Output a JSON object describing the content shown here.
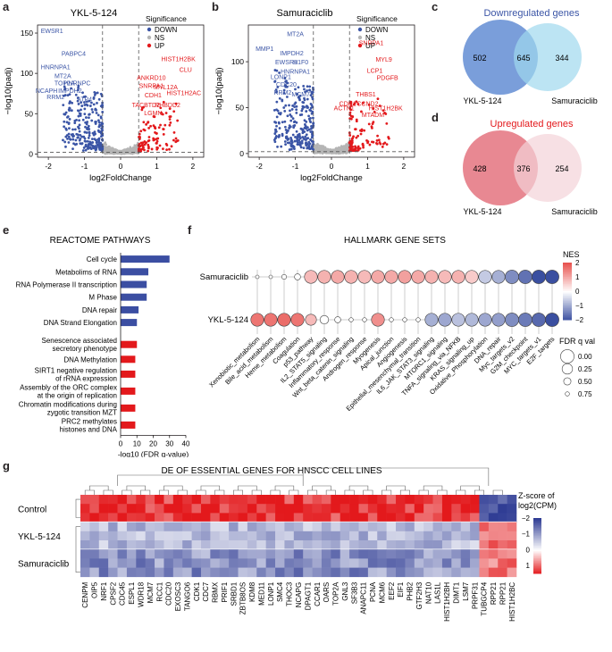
{
  "panel_letters": [
    "a",
    "b",
    "c",
    "d",
    "e",
    "f",
    "g"
  ],
  "volcano_legend": {
    "title": "Significance",
    "items": [
      "DOWN",
      "NS",
      "UP"
    ]
  },
  "colors": {
    "down": "#3b55a6",
    "ns": "#b5b5b5",
    "up": "#e3191c",
    "venn_down_left": "#6b93d6",
    "venn_down_right": "#9fd8ee",
    "venn_up_left": "#e67b86",
    "venn_up_right": "#f3d3d8",
    "venn_down_title": "#3b55a6",
    "venn_up_title": "#e3191c",
    "bar_blue": "#3b4ea2",
    "bar_red": "#e3191c"
  },
  "chart_data": [
    {
      "id": "a",
      "type": "scatter",
      "title": "YKL-5-124",
      "xlabel": "log2FoldChange",
      "ylabel": "−log10(padj)",
      "xlim": [
        -2.3,
        2.3
      ],
      "ylim": [
        -4,
        160
      ],
      "xticks": [
        "-2",
        "-1",
        "0",
        "1",
        "2"
      ],
      "yticks": [
        "0",
        "50",
        "100",
        "150"
      ],
      "xtick_values": [
        -2,
        -1,
        0,
        1,
        2
      ],
      "ytick_values": [
        0,
        50,
        100,
        150
      ],
      "vlines": [
        -0.5,
        0.5
      ],
      "hline": 2,
      "labels_down": [
        {
          "text": "EWSR1",
          "x": -1.9,
          "y": 150
        },
        {
          "text": "PABPC4",
          "x": -1.3,
          "y": 122
        },
        {
          "text": "HNRNPA1",
          "x": -1.8,
          "y": 105
        },
        {
          "text": "MT2A",
          "x": -1.6,
          "y": 94
        },
        {
          "text": "TOP2A",
          "x": -1.55,
          "y": 85
        },
        {
          "text": "HNRNPC",
          "x": -1.2,
          "y": 85
        },
        {
          "text": "NCAPH",
          "x": -2.05,
          "y": 76
        },
        {
          "text": "IMPDH2",
          "x": -1.4,
          "y": 76
        },
        {
          "text": "RRM2",
          "x": -1.8,
          "y": 68
        },
        {
          "text": "ATP4",
          "x": -1.0,
          "y": 65
        }
      ],
      "labels_up": [
        {
          "text": "HIST1H2BK",
          "x": 1.6,
          "y": 115
        },
        {
          "text": "CLU",
          "x": 1.8,
          "y": 102
        },
        {
          "text": "ANKRD10",
          "x": 0.85,
          "y": 92
        },
        {
          "text": "SNRPA1",
          "x": 0.85,
          "y": 82
        },
        {
          "text": "MYL12A",
          "x": 1.25,
          "y": 80
        },
        {
          "text": "HIST1H2AC",
          "x": 1.75,
          "y": 73
        },
        {
          "text": "CDH1",
          "x": 0.9,
          "y": 70
        },
        {
          "text": "TACBTD2",
          "x": 0.7,
          "y": 58
        },
        {
          "text": "RHBDD2",
          "x": 1.3,
          "y": 58
        },
        {
          "text": "LGMN",
          "x": 0.9,
          "y": 48
        }
      ]
    },
    {
      "id": "b",
      "type": "scatter",
      "title": "Samuraciclib",
      "xlabel": "log2FoldChange",
      "ylabel": "−log10(padj)",
      "xlim": [
        -2.3,
        2.3
      ],
      "ylim": [
        -4,
        140
      ],
      "xticks": [
        "-2",
        "-1",
        "0",
        "1",
        "2"
      ],
      "yticks": [
        "0",
        "50",
        "100"
      ],
      "xtick_values": [
        -2,
        -1,
        0,
        1,
        2
      ],
      "ytick_values": [
        0,
        50,
        100
      ],
      "vlines": [
        -0.5,
        0.5
      ],
      "hline": 2,
      "labels_down": [
        {
          "text": "MT2A",
          "x": -1.0,
          "y": 128
        },
        {
          "text": "MMP1",
          "x": -1.85,
          "y": 112
        },
        {
          "text": "IMPDH2",
          "x": -1.1,
          "y": 107
        },
        {
          "text": "EWSR1",
          "x": -1.25,
          "y": 97
        },
        {
          "text": "H1F0",
          "x": -0.85,
          "y": 97
        },
        {
          "text": "HNRNPA1",
          "x": -1.0,
          "y": 87
        },
        {
          "text": "LONP1",
          "x": -1.4,
          "y": 81
        },
        {
          "text": "CDC20",
          "x": -1.25,
          "y": 73
        },
        {
          "text": "RRM2",
          "x": -1.35,
          "y": 64
        },
        {
          "text": "MCM7",
          "x": -0.85,
          "y": 62
        }
      ],
      "labels_up": [
        {
          "text": "SNRPA1",
          "x": 1.1,
          "y": 118
        },
        {
          "text": "MYL9",
          "x": 1.45,
          "y": 100
        },
        {
          "text": "LCP1",
          "x": 1.2,
          "y": 88
        },
        {
          "text": "PDGFB",
          "x": 1.55,
          "y": 80
        },
        {
          "text": "THBS1",
          "x": 0.95,
          "y": 62
        },
        {
          "text": "CDH1",
          "x": 0.45,
          "y": 52
        },
        {
          "text": "CCND2",
          "x": 1.0,
          "y": 52
        },
        {
          "text": "ACTN1",
          "x": 0.35,
          "y": 47
        },
        {
          "text": "HIST1H2BK",
          "x": 1.5,
          "y": 47
        },
        {
          "text": "MTADM",
          "x": 1.15,
          "y": 40
        }
      ]
    },
    {
      "id": "c",
      "type": "venn",
      "title": "Downregulated genes",
      "left_label": "YKL-5-124",
      "right_label": "Samuraciclib",
      "left_only": "502",
      "overlap": "645",
      "right_only": "344"
    },
    {
      "id": "d",
      "type": "venn",
      "title": "Upregulated genes",
      "left_label": "YKL-5-124",
      "right_label": "Samuraciclib",
      "left_only": "428",
      "overlap": "376",
      "right_only": "254"
    },
    {
      "id": "e",
      "type": "bar",
      "title": "REACTOME PATHWAYS",
      "xlabel": "-log10 (FDR q-value)",
      "xlim": [
        0,
        40
      ],
      "xticks": [
        "0",
        "10",
        "20",
        "30",
        "40"
      ],
      "xtick_values": [
        0,
        10,
        20,
        30,
        40
      ],
      "series": [
        {
          "name": "Cell cycle",
          "label_lines": [
            "Cell cycle"
          ],
          "value": 30,
          "dir": "down"
        },
        {
          "name": "Metabolism of RNA",
          "label_lines": [
            "Metabolims of RNA"
          ],
          "value": 17,
          "dir": "down"
        },
        {
          "name": "RNA Polymerase II transcription",
          "label_lines": [
            "RNA Polymerase II transcription"
          ],
          "value": 16,
          "dir": "down"
        },
        {
          "name": "M Phase",
          "label_lines": [
            "M Phase"
          ],
          "value": 16,
          "dir": "down"
        },
        {
          "name": "DNA repair",
          "label_lines": [
            "DNA repair"
          ],
          "value": 11,
          "dir": "down"
        },
        {
          "name": "DNA Strand Elongation",
          "label_lines": [
            "DNA Strand Elongation"
          ],
          "value": 10,
          "dir": "down"
        },
        {
          "name": "Senescence associated secretory phenotype",
          "label_lines": [
            "Senescence associated",
            "secretory phenotype"
          ],
          "value": 10,
          "dir": "up"
        },
        {
          "name": "DNA Methylation",
          "label_lines": [
            "DNA Methylation"
          ],
          "value": 9,
          "dir": "up"
        },
        {
          "name": "SIRT1 negative regulation of rRNA expression",
          "label_lines": [
            "SIRT1 negative regulation",
            "of rRNA expression"
          ],
          "value": 9,
          "dir": "up"
        },
        {
          "name": "Assembly of the ORC complex at the origin of replication",
          "label_lines": [
            "Assembly of the ORC complex",
            "at the origin of replication"
          ],
          "value": 9,
          "dir": "up"
        },
        {
          "name": "Chromatin modifications during zygotic transition MZT",
          "label_lines": [
            "Chromatin modifications during",
            "zygotic transition MZT"
          ],
          "value": 9,
          "dir": "up"
        },
        {
          "name": "PRC2 methylates histones and DNA",
          "label_lines": [
            "PRC2 methylates",
            "histones and DNA"
          ],
          "value": 9,
          "dir": "up"
        }
      ]
    },
    {
      "id": "f",
      "type": "dotplot",
      "title": "HALLMARK GENE SETS",
      "rows": [
        "Samuraciclib",
        "YKL-5-124"
      ],
      "columns": [
        "Xenobiotic_metabolism",
        "Bile_acid_metabolism",
        "Heme_metabolism",
        "Coagulation",
        "p53_pathway",
        "IL2_STAT5_signaling",
        "Inflammatory_response",
        "Wnt_beta_catenin_signaling",
        "Androgen_response",
        "Myogenesis",
        "Apical_junction",
        "Angiogenesis",
        "Epithelial_mesenchymal_transition",
        "IL6_JAK_STAT3_signaling",
        "MTORC1_signaling",
        "TNFA_signaling_via_NFKB",
        "KRAS_signaling_up",
        "Oxidative_Phosphorylation",
        "DNA_repair",
        "Myc_targets_v2",
        "G2M_checkpoint",
        "MYC_targets_v1",
        "E2F_targets"
      ],
      "nes": [
        [
          0,
          0,
          0,
          0,
          0.8,
          0.9,
          1.0,
          0.9,
          0.8,
          1.0,
          1.0,
          1.1,
          1.0,
          0.9,
          0.8,
          0.9,
          0.6,
          -0.6,
          -0.9,
          -1.3,
          -1.6,
          -2.0,
          -2.2
        ],
        [
          1.6,
          1.6,
          1.7,
          1.6,
          0.8,
          0,
          0,
          0,
          0,
          1.3,
          0,
          0,
          0,
          -0.9,
          -1.0,
          -0.7,
          -0.8,
          -1.0,
          -1.1,
          -1.3,
          -1.5,
          -1.7,
          -2.1
        ]
      ],
      "fdr": [
        [
          0.8,
          0.8,
          0.7,
          0.6,
          0.05,
          0.05,
          0.05,
          0.05,
          0.05,
          0.05,
          0.05,
          0.05,
          0.05,
          0.05,
          0.05,
          0.05,
          0.05,
          0.05,
          0.05,
          0.0,
          0.0,
          0.0,
          0.0
        ],
        [
          0.05,
          0.05,
          0.05,
          0.05,
          0.2,
          0.4,
          0.6,
          0.75,
          0.75,
          0.05,
          0.75,
          0.75,
          0.75,
          0.05,
          0.05,
          0.05,
          0.05,
          0.05,
          0.05,
          0.0,
          0.0,
          0.0,
          0.0
        ]
      ],
      "nes_legend": {
        "title": "NES",
        "ticks": [
          "2",
          "1",
          "0",
          "−1",
          "−2"
        ],
        "tick_values": [
          2,
          1,
          0,
          -1,
          -2
        ]
      },
      "fdr_legend": {
        "title": "FDR q val",
        "ticks": [
          "0.00",
          "0.25",
          "0.50",
          "0.75"
        ],
        "tick_values": [
          0,
          0.25,
          0.5,
          0.75
        ]
      }
    },
    {
      "id": "g",
      "type": "heatmap",
      "title": "DE OF ESSENTIAL GENES FOR HNSCC CELL LINES",
      "groups": [
        {
          "name": "Control",
          "n": 3
        },
        {
          "name": "YKL-5-124",
          "n": 3
        },
        {
          "name": "Samuraciclib",
          "n": 3
        }
      ],
      "genes": [
        "CENPM",
        "OIP5",
        "NRF1",
        "CPSF2",
        "CDC45",
        "ESPL1",
        "WDR18",
        "MCM7",
        "RCC1",
        "CDC20",
        "EXOSC3",
        "TANGO6",
        "CDK1",
        "CDC7",
        "RBMX",
        "PRIF1",
        "SRBD1",
        "ZBTB8OS",
        "KDM8",
        "MED11",
        "LONP1",
        "SMC4",
        "THOC3",
        "NCAPG",
        "DPAGT1",
        "CCAR1",
        "OARS",
        "TOP2A",
        "GNL3",
        "SF3B3",
        "ANAPC11",
        "PCNA",
        "MCM6",
        "EEF2",
        "EIF1",
        "PHB2",
        "GTF2H3",
        "NAT10",
        "LAS1L",
        "HIST1H2BH",
        "DIMT1",
        "LSM7",
        "PRPF31",
        "TUBGCP4",
        "RPP21",
        "RPP21",
        "HIST1H2BC"
      ],
      "legend": {
        "title_lines": [
          "Z-score of",
          "log2(CPM)"
        ],
        "ticks": [
          "−2",
          "−1",
          "0",
          "1"
        ],
        "tick_values": [
          -2,
          -1,
          0,
          1
        ]
      }
    }
  ]
}
